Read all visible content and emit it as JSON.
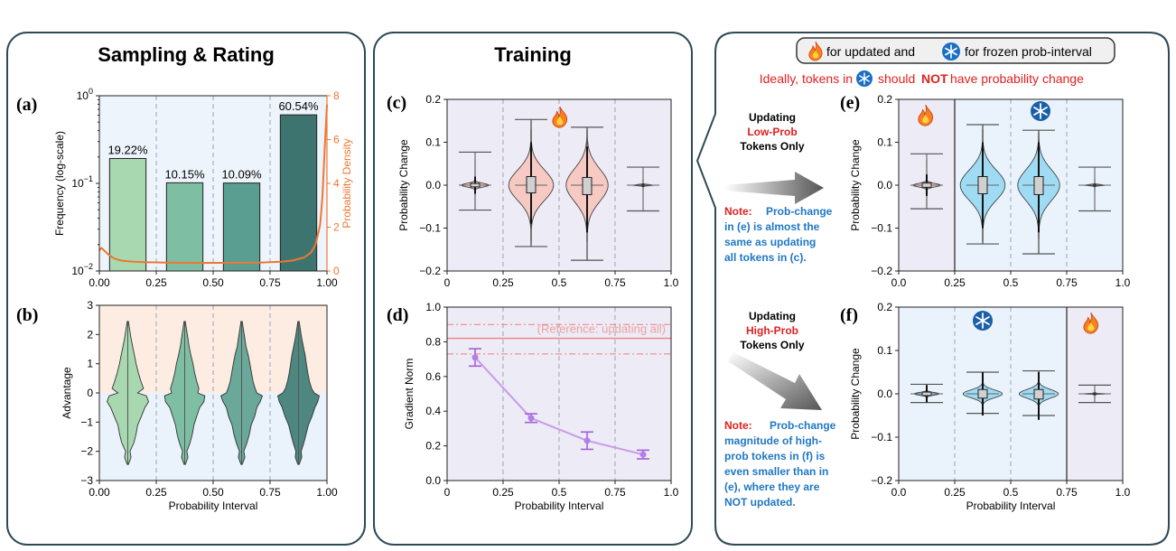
{
  "panels": {
    "left_title": "Sampling & Rating",
    "mid_title": "Training",
    "legend_box": {
      "fire_text": "for updated and",
      "snow_text": "for frozen prob-interval"
    },
    "ideal_text": {
      "part1": "Ideally, tokens in",
      "part2": "should",
      "part3": "NOT",
      "part4": "have probability change"
    },
    "arrow_top": {
      "line1": "Updating",
      "line2": "Low-Prob",
      "line3": "Tokens Only"
    },
    "arrow_bottom": {
      "line1": "Updating",
      "line2": "High-Prob",
      "line3": "Tokens Only"
    },
    "note_top": {
      "label": "Note:",
      "lines": [
        "Prob-change",
        "in (e) is almost the",
        "same as updating",
        "all tokens in (c)."
      ]
    },
    "note_bottom": {
      "label": "Note:",
      "lines": [
        "Prob-change",
        "magnitude of high-",
        "prob tokens in (f) is",
        "even smaller than in",
        "(e), where they are",
        "NOT updated."
      ]
    }
  },
  "colors": {
    "red_text": "#e02020",
    "blue_text": "#1f77c4",
    "bar_colors": [
      "#a8d8b0",
      "#7ebfa3",
      "#5a9e91",
      "#3e7470"
    ],
    "density_line": "#ee7733",
    "grad_line": "#c79be8",
    "ref_line": "#f08080",
    "violin_red": "#f7c9c3",
    "violin_blue": "#9fdcf4"
  },
  "chart_data": [
    {
      "id": "a",
      "panel_label": "(a)",
      "type": "bar",
      "x": [
        0.125,
        0.375,
        0.625,
        0.875
      ],
      "values": [
        0.1922,
        0.1015,
        0.1009,
        0.6054
      ],
      "data_labels": [
        "19.22%",
        "10.15%",
        "10.09%",
        "60.54%"
      ],
      "ylabel": "Frequency (log-scale)",
      "y2label": "Probability Density",
      "yscale": "log",
      "ylim": [
        0.01,
        1
      ],
      "y_ticks": [
        {
          "v": 0.01,
          "base": "10",
          "exp": "−2"
        },
        {
          "v": 0.1,
          "base": "10",
          "exp": "−1"
        },
        {
          "v": 1,
          "base": "10",
          "exp": "0"
        }
      ],
      "xlim": [
        0,
        1
      ],
      "x_ticks": [
        "0.00",
        "0.25",
        "0.50",
        "0.75",
        "1.00"
      ],
      "y2lim": [
        0,
        8
      ],
      "y2_ticks": [
        "0",
        "2",
        "4",
        "6",
        "8"
      ],
      "density": {
        "x": [
          0,
          0.01,
          0.02,
          0.04,
          0.06,
          0.08,
          0.1,
          0.15,
          0.2,
          0.3,
          0.4,
          0.5,
          0.6,
          0.7,
          0.8,
          0.85,
          0.9,
          0.93,
          0.95,
          0.97,
          0.98,
          0.99,
          1.0
        ],
        "y": [
          0.95,
          1.05,
          0.95,
          0.75,
          0.6,
          0.52,
          0.47,
          0.42,
          0.4,
          0.38,
          0.37,
          0.37,
          0.37,
          0.38,
          0.42,
          0.48,
          0.62,
          0.85,
          1.2,
          2.1,
          3.4,
          5.6,
          7.6
        ]
      }
    },
    {
      "id": "b",
      "panel_label": "(b)",
      "type": "violin",
      "x": [
        0.125,
        0.375,
        0.625,
        0.875
      ],
      "ylabel": "Advantage",
      "xlabel": "Probability Interval",
      "ylim": [
        -3,
        3
      ],
      "y_ticks": [
        "−3",
        "−2",
        "−1",
        "0",
        "1",
        "2",
        "3"
      ],
      "xlim": [
        0,
        1
      ],
      "x_ticks": [
        "0.00",
        "0.25",
        "0.50",
        "0.75",
        "1.00"
      ],
      "range": [
        -2.45,
        2.45
      ],
      "profile_y": [
        -2.45,
        -2.2,
        -2.0,
        -1.7,
        -1.4,
        -1.1,
        -0.8,
        -0.5,
        -0.3,
        -0.1,
        0.0,
        0.15,
        0.4,
        0.7,
        1.0,
        1.3,
        1.6,
        1.9,
        2.2,
        2.45
      ],
      "profiles": [
        [
          0.03,
          0.15,
          0.1,
          0.28,
          0.38,
          0.45,
          0.62,
          0.78,
          0.95,
          0.85,
          0.45,
          0.72,
          0.6,
          0.48,
          0.38,
          0.3,
          0.22,
          0.14,
          0.08,
          0.03
        ],
        [
          0.03,
          0.15,
          0.1,
          0.25,
          0.35,
          0.42,
          0.55,
          0.68,
          0.88,
          0.92,
          0.6,
          0.65,
          0.55,
          0.45,
          0.38,
          0.28,
          0.2,
          0.14,
          0.08,
          0.03
        ],
        [
          0.03,
          0.15,
          0.1,
          0.25,
          0.36,
          0.44,
          0.6,
          0.7,
          0.85,
          0.95,
          0.7,
          0.62,
          0.52,
          0.45,
          0.38,
          0.3,
          0.2,
          0.14,
          0.08,
          0.03
        ],
        [
          0.03,
          0.15,
          0.12,
          0.25,
          0.35,
          0.45,
          0.62,
          0.75,
          0.88,
          0.95,
          0.72,
          0.6,
          0.5,
          0.42,
          0.36,
          0.3,
          0.22,
          0.14,
          0.08,
          0.03
        ]
      ],
      "colors": [
        "#a8d8b0",
        "#7ebfa3",
        "#6aa89a",
        "#4e8680"
      ]
    },
    {
      "id": "c",
      "panel_label": "(c)",
      "type": "violin",
      "x": [
        0.125,
        0.375,
        0.625,
        0.875
      ],
      "ylabel": "Probability Change",
      "ylim": [
        -0.2,
        0.2
      ],
      "y_ticks": [
        "−0.2",
        "−0.1",
        "0.0",
        "0.1",
        "0.2"
      ],
      "xlim": [
        0,
        1
      ],
      "x_ticks": [
        "0",
        "0.25",
        "0.5",
        "0.75",
        "1.0"
      ],
      "whiskers": [
        [
          -0.058,
          0.077
        ],
        [
          -0.143,
          0.153
        ],
        [
          -0.175,
          0.135
        ],
        [
          -0.06,
          0.042
        ]
      ],
      "boxes": [
        [
          -0.004,
          0.004
        ],
        [
          -0.018,
          0.02
        ],
        [
          -0.022,
          0.018
        ],
        null
      ],
      "widths": [
        0.5,
        0.8,
        0.75,
        0.4
      ],
      "spreads": [
        0.004,
        0.035,
        0.038,
        0.0012
      ],
      "colors": [
        "#f7c9c3",
        "#f7c9c3",
        "#f7c9c3",
        "#f7c9c3"
      ]
    },
    {
      "id": "d",
      "panel_label": "(d)",
      "type": "line",
      "x": [
        0.125,
        0.375,
        0.625,
        0.875
      ],
      "values": [
        0.71,
        0.36,
        0.23,
        0.15
      ],
      "errors": [
        0.05,
        0.025,
        0.05,
        0.025
      ],
      "ylabel": "Gradient Norm",
      "xlabel": "Probability Interval",
      "ylim": [
        0,
        1
      ],
      "y_ticks": [
        "0.0",
        "0.2",
        "0.4",
        "0.6",
        "0.8",
        "1.0"
      ],
      "xlim": [
        0,
        1
      ],
      "x_ticks": [
        "0",
        "0.25",
        "0.5",
        "0.75",
        "1.0"
      ],
      "reference": {
        "value": 0.82,
        "band": [
          0.73,
          0.9
        ],
        "label": "(Reference: updating all)"
      }
    },
    {
      "id": "e",
      "panel_label": "(e)",
      "type": "violin",
      "x": [
        0.125,
        0.375,
        0.625,
        0.875
      ],
      "ylabel": "Probability Change",
      "ylim": [
        -0.2,
        0.2
      ],
      "y_ticks": [
        "−0.2",
        "−0.1",
        "0.0",
        "0.1",
        "0.2"
      ],
      "xlim": [
        0,
        1
      ],
      "x_ticks": [
        "0.0",
        "0.25",
        "0.5",
        "0.75",
        "1.0"
      ],
      "whiskers": [
        [
          -0.055,
          0.073
        ],
        [
          -0.137,
          0.141
        ],
        [
          -0.16,
          0.128
        ],
        [
          -0.06,
          0.042
        ]
      ],
      "boxes": [
        [
          -0.005,
          0.005
        ],
        [
          -0.02,
          0.02
        ],
        [
          -0.022,
          0.02
        ],
        null
      ],
      "widths": [
        0.5,
        0.8,
        0.75,
        0.4
      ],
      "spreads": [
        0.004,
        0.035,
        0.036,
        0.0012
      ],
      "colors": [
        "#f7c9c3",
        "#9fdcf4",
        "#9fdcf4",
        "#9fdcf4"
      ]
    },
    {
      "id": "f",
      "panel_label": "(f)",
      "type": "violin",
      "x": [
        0.125,
        0.375,
        0.625,
        0.875
      ],
      "ylabel": "Probability Change",
      "xlabel": "Probability Interval",
      "ylim": [
        -0.2,
        0.2
      ],
      "y_ticks": [
        "−0.2",
        "−0.1",
        "0.0",
        "0.1",
        "0.2"
      ],
      "xlim": [
        0,
        1
      ],
      "x_ticks": [
        "0.0",
        "0.25",
        "0.5",
        "0.75",
        "1.0"
      ],
      "whiskers": [
        [
          -0.02,
          0.022
        ],
        [
          -0.045,
          0.05
        ],
        [
          -0.05,
          0.053
        ],
        [
          -0.02,
          0.02
        ]
      ],
      "boxes": [
        [
          -0.004,
          0.004
        ],
        [
          -0.01,
          0.01
        ],
        [
          -0.012,
          0.01
        ],
        null
      ],
      "widths": [
        0.45,
        0.7,
        0.7,
        0.4
      ],
      "spreads": [
        0.003,
        0.009,
        0.01,
        0.0008
      ],
      "colors": [
        "#9fdcf4",
        "#9fdcf4",
        "#9fdcf4",
        "#f7c9c3"
      ]
    }
  ]
}
